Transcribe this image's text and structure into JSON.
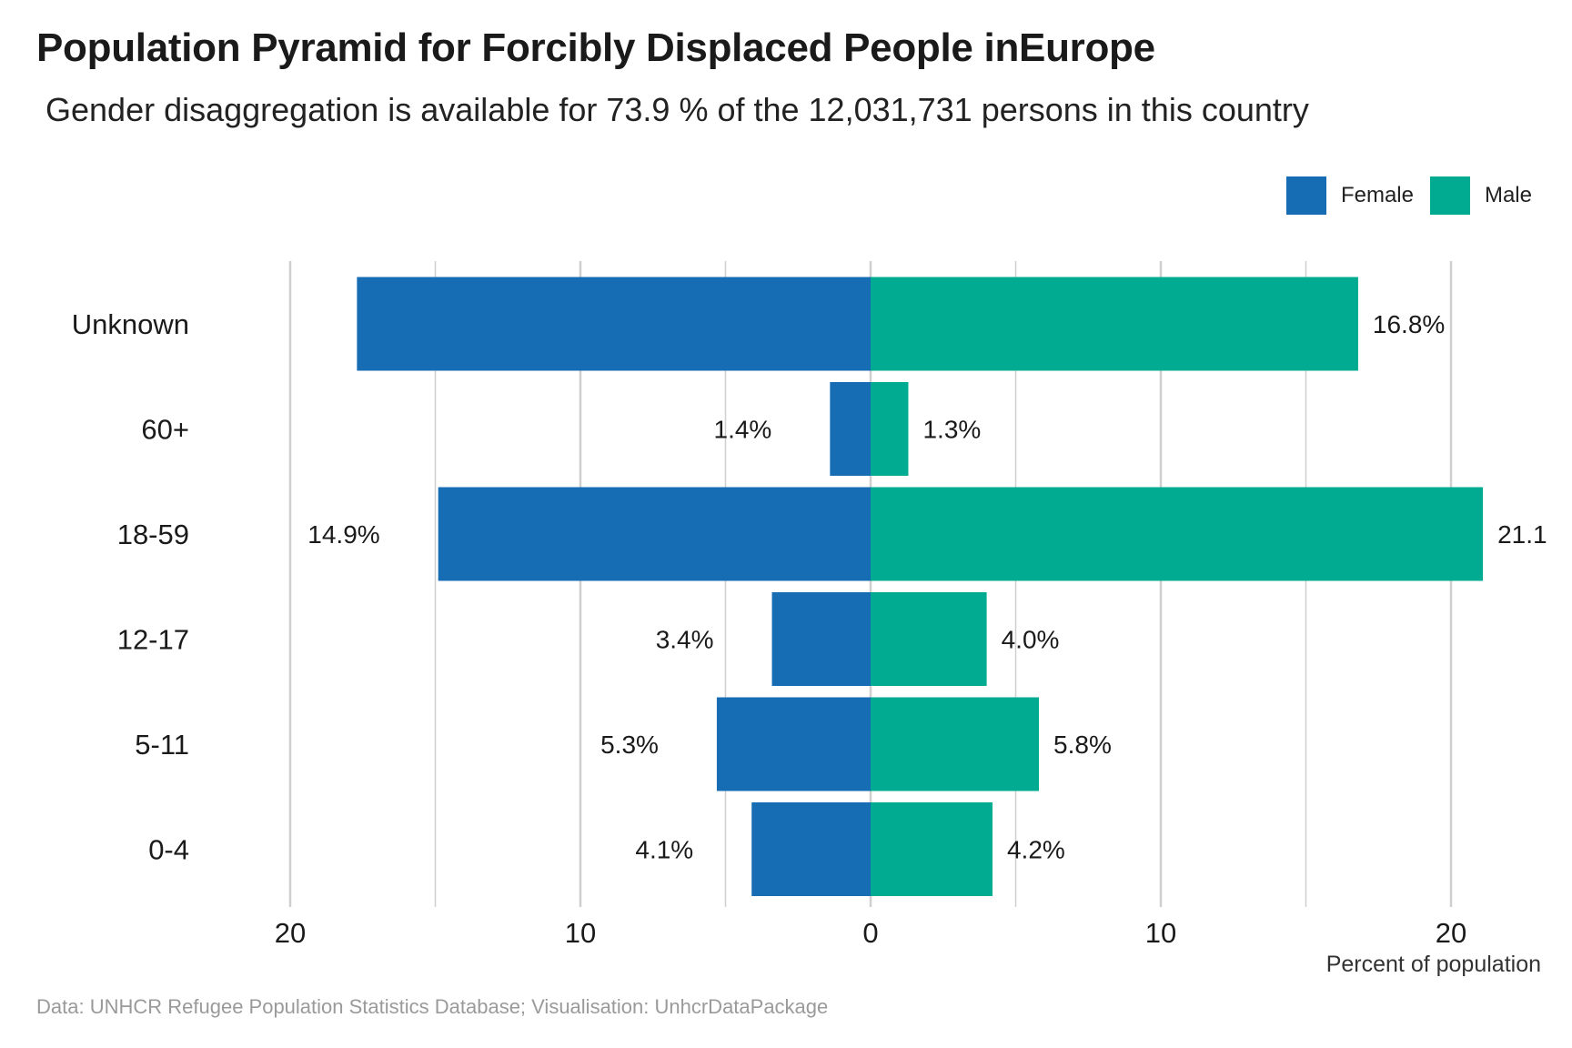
{
  "title": "Population Pyramid for Forcibly Displaced People inEurope",
  "subtitle": "Gender disaggregation is available for 73.9 % of the 12,031,731 persons in this country",
  "caption": "Data: UNHCR Refugee Population Statistics Database; Visualisation: UnhcrDataPackage",
  "colors": {
    "female": "#176db4",
    "male": "#00ab92",
    "grid": "#cfcfcf"
  },
  "chart_data": {
    "type": "bar",
    "orientation": "horizontal-diverging",
    "title": "Population Pyramid for Forcibly Displaced People inEurope",
    "subtitle": "Gender disaggregation is available for 73.9 % of the 12,031,731 persons in this country",
    "xlabel": "Percent of population",
    "ylabel": "",
    "categories": [
      "Unknown",
      "60+",
      "18-59",
      "12-17",
      "5-11",
      "0-4"
    ],
    "series": [
      {
        "name": "Female",
        "values": [
          17.7,
          1.4,
          14.9,
          3.4,
          5.3,
          4.1
        ],
        "labels": [
          "",
          "1.4%",
          "14.9%",
          "3.4%",
          "5.3%",
          "4.1%"
        ]
      },
      {
        "name": "Male",
        "values": [
          16.8,
          1.3,
          21.1,
          4.0,
          5.8,
          4.2
        ],
        "labels": [
          "16.8%",
          "1.3%",
          "21.1",
          "4.0%",
          "5.8%",
          "4.2%"
        ]
      }
    ],
    "xlim": [
      -20,
      20
    ],
    "xticks": [
      -20,
      -10,
      0,
      10,
      20
    ],
    "xtick_labels": [
      "20",
      "10",
      "0",
      "10",
      "20"
    ],
    "grid": true,
    "legend": "top-right"
  }
}
